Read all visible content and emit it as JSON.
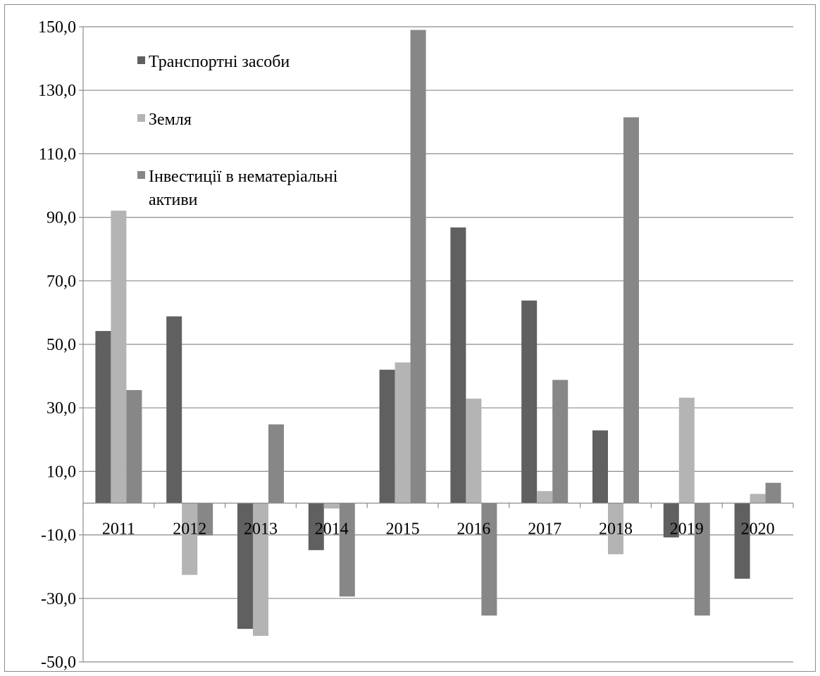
{
  "chart_data": {
    "type": "bar",
    "categories": [
      "2011",
      "2012",
      "2013",
      "2014",
      "2015",
      "2016",
      "2017",
      "2018",
      "2019",
      "2020"
    ],
    "series": [
      {
        "name": "Транспортні засоби",
        "color": "#606060",
        "values": [
          54.2,
          58.8,
          -39.6,
          -14.8,
          42.0,
          86.8,
          63.8,
          22.9,
          -10.8,
          -23.8
        ]
      },
      {
        "name": "Земля",
        "color": "#b4b4b4",
        "values": [
          92.1,
          -22.6,
          -41.8,
          -1.7,
          44.3,
          32.9,
          3.8,
          -16.1,
          33.2,
          2.9
        ]
      },
      {
        "name": "Інвестиції в нематеріальні активи",
        "color": "#878787",
        "values": [
          35.6,
          -10.2,
          24.8,
          -29.4,
          149.0,
          -35.4,
          38.8,
          121.5,
          -35.4,
          6.4
        ]
      }
    ],
    "ylim": [
      -50,
      150
    ],
    "yticks": [
      "-50,0",
      "-30,0",
      "-10,0",
      "10,0",
      "30,0",
      "50,0",
      "70,0",
      "90,0",
      "110,0",
      "130,0",
      "150,0"
    ],
    "ytick_values": [
      -50,
      -30,
      -10,
      10,
      30,
      50,
      70,
      90,
      110,
      130,
      150
    ],
    "legend": {
      "placement": "top-left inside plot",
      "entries": [
        "Транспортні засоби",
        "Земля",
        "Інвестиції в нематеріальні",
        "активи"
      ]
    },
    "grid": true,
    "title": "",
    "xlabel": "",
    "ylabel": ""
  }
}
